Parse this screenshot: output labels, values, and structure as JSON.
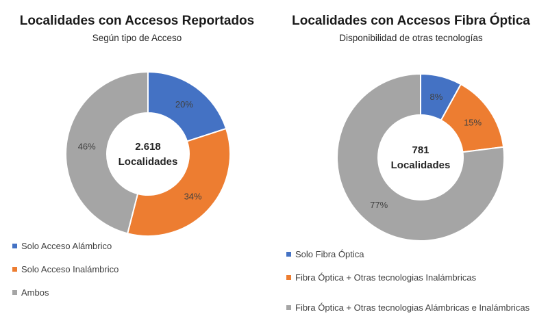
{
  "chart_data": [
    {
      "type": "pie",
      "title": "Localidades con Accesos Reportados",
      "subtitle": "Según tipo de Acceso",
      "center_label": [
        "2.618",
        "Localidades"
      ],
      "slices": [
        {
          "label": "Solo Acceso Alámbrico",
          "value": 20,
          "display": "20%",
          "color": "#4472C4"
        },
        {
          "label": "Solo Acceso Inalámbrico",
          "value": 34,
          "display": "34%",
          "color": "#ED7D31"
        },
        {
          "label": "Ambos",
          "value": 46,
          "display": "46%",
          "color": "#A5A5A5"
        }
      ],
      "legend_position": "bottom"
    },
    {
      "type": "pie",
      "title": "Localidades con Accesos Fibra Óptica",
      "subtitle": "Disponibilidad de otras tecnologías",
      "center_label": [
        "781",
        "Localidades"
      ],
      "slices": [
        {
          "label": "Solo Fibra Óptica",
          "value": 8,
          "display": "8%",
          "color": "#4472C4"
        },
        {
          "label": "Fibra Óptica + Otras tecnologias Inalámbricas",
          "value": 15,
          "display": "15%",
          "color": "#ED7D31"
        },
        {
          "label": "Fibra Óptica + Otras tecnologias Alámbricas e Inalámbricas",
          "value": 77,
          "display": "77%",
          "color": "#A5A5A5"
        }
      ],
      "legend_position": "bottom"
    }
  ]
}
